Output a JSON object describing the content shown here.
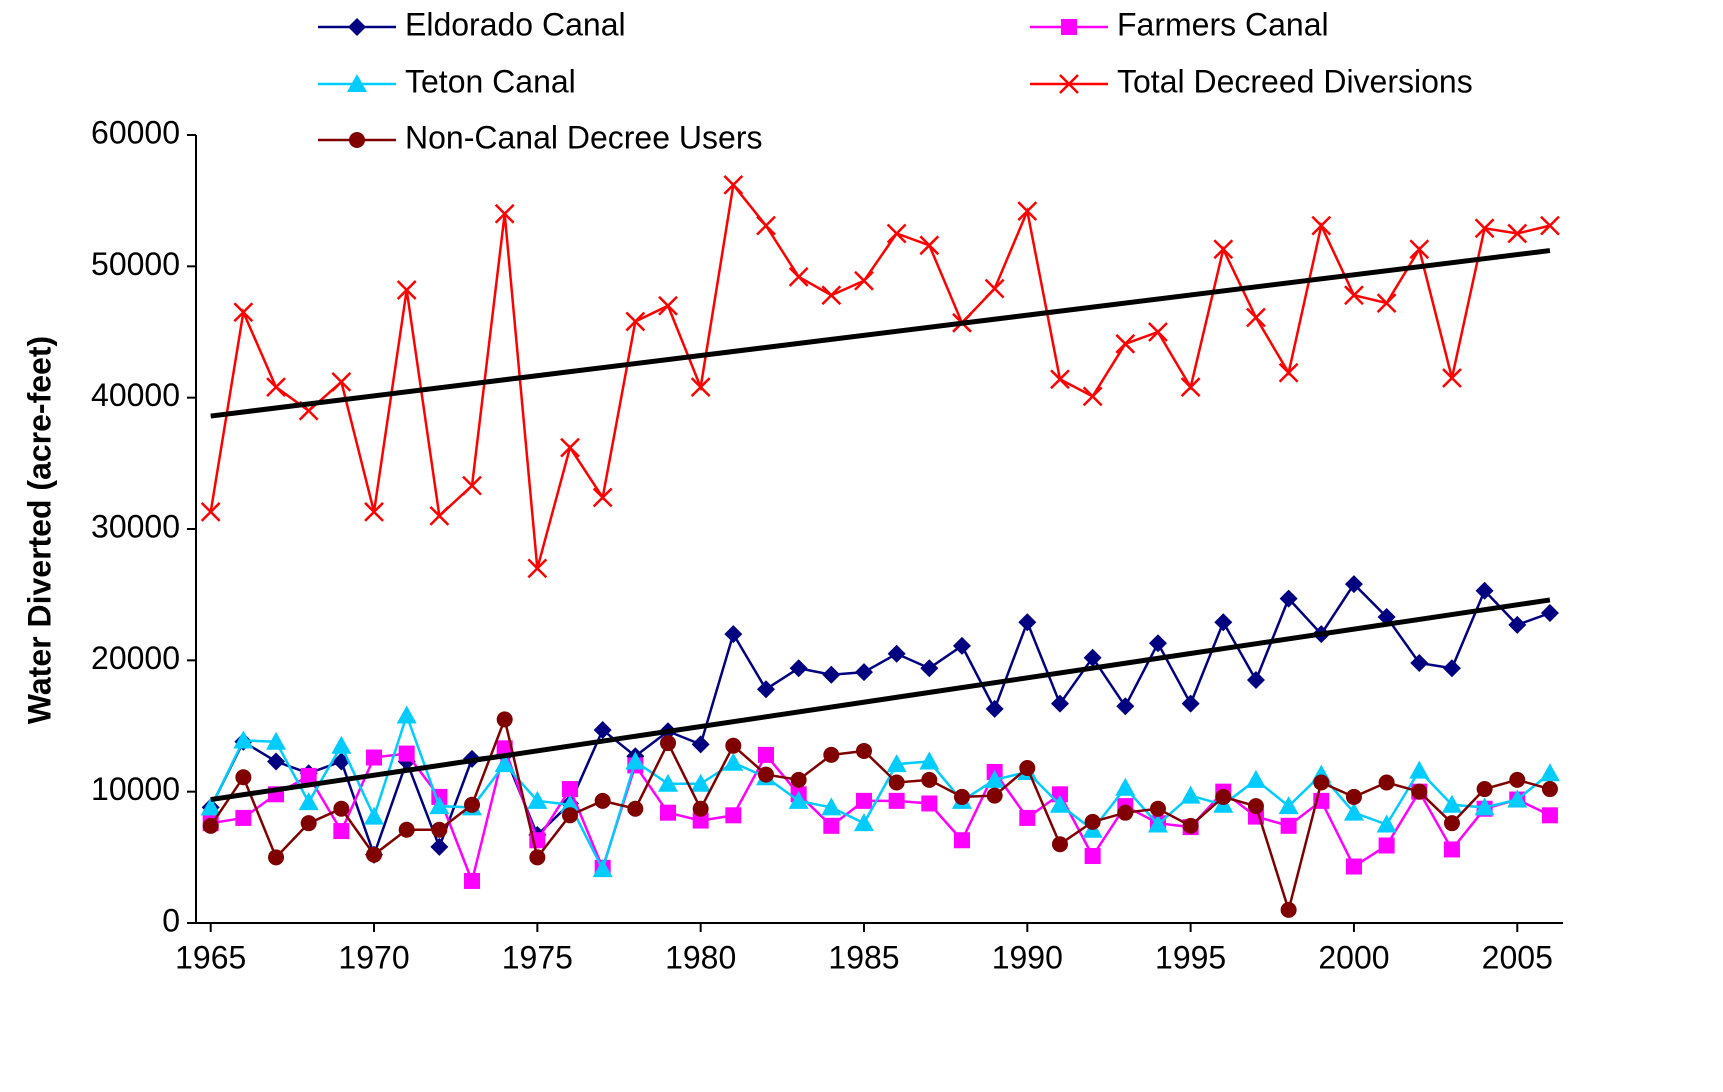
{
  "chart_data": {
    "type": "line",
    "y_label": "Water Diverted (acre-feet)",
    "x": [
      1965,
      1966,
      1967,
      1968,
      1969,
      1970,
      1971,
      1972,
      1973,
      1974,
      1975,
      1976,
      1977,
      1978,
      1979,
      1980,
      1981,
      1982,
      1983,
      1984,
      1985,
      1986,
      1987,
      1988,
      1989,
      1990,
      1991,
      1992,
      1993,
      1994,
      1995,
      1996,
      1997,
      1998,
      1999,
      2000,
      2001,
      2002,
      2003,
      2004,
      2005,
      2006
    ],
    "series": [
      {
        "name": "Eldorado Canal",
        "color": "#000080",
        "marker": "diamond",
        "values": [
          8800,
          13800,
          12300,
          11400,
          12300,
          5200,
          12300,
          5800,
          12500,
          12800,
          6700,
          9100,
          14700,
          12700,
          14600,
          13600,
          22000,
          17800,
          19400,
          18900,
          19100,
          20500,
          19400,
          21100,
          16300,
          22900,
          16700,
          20200,
          16500,
          21300,
          16700,
          22900,
          18500,
          24700,
          22000,
          25800,
          23300,
          19800,
          19400,
          25300,
          22700,
          23600
        ]
      },
      {
        "name": "Farmers Canal",
        "color": "#ff00ff",
        "marker": "square",
        "values": [
          7600,
          8000,
          9800,
          11200,
          7000,
          12600,
          12900,
          9600,
          3200,
          13300,
          6300,
          10200,
          4200,
          12000,
          8400,
          7800,
          8200,
          12800,
          9800,
          7400,
          9300,
          9300,
          9100,
          6300,
          11500,
          8000,
          9800,
          5100,
          8900,
          7600,
          7300,
          10000,
          8100,
          7400,
          9300,
          4300,
          5900,
          10000,
          5600,
          8700,
          9400,
          8200
        ]
      },
      {
        "name": "Teton Canal",
        "color": "#00ccff",
        "marker": "triangle",
        "values": [
          8800,
          13900,
          13800,
          9200,
          13500,
          8100,
          15800,
          8900,
          8800,
          12100,
          9300,
          9000,
          4100,
          12300,
          10600,
          10600,
          12200,
          11100,
          9300,
          8800,
          7600,
          12100,
          12300,
          9300,
          10900,
          11500,
          9000,
          7100,
          10300,
          7500,
          9700,
          9000,
          10900,
          8900,
          11300,
          8400,
          7500,
          11600,
          9000,
          8800,
          9400,
          11400
        ]
      },
      {
        "name": "Total Decreed Diversions",
        "color": "#ff0000",
        "marker": "x",
        "values": [
          31300,
          46500,
          40800,
          39000,
          41200,
          31300,
          48200,
          31000,
          33300,
          54000,
          27000,
          36200,
          32400,
          45800,
          47000,
          40800,
          56200,
          53100,
          49200,
          47800,
          48900,
          52500,
          51600,
          45700,
          48300,
          54200,
          41400,
          40100,
          44100,
          45000,
          40800,
          51300,
          46100,
          41900,
          53100,
          47800,
          47200,
          51300,
          41500,
          52900,
          52500,
          53100
        ]
      },
      {
        "name": "Non-Canal Decree Users",
        "color": "#800000",
        "marker": "circle",
        "values": [
          7400,
          11100,
          5000,
          7600,
          8700,
          5200,
          7100,
          7100,
          9000,
          15500,
          5000,
          8200,
          9300,
          8700,
          13700,
          8700,
          13500,
          11300,
          10900,
          12800,
          13100,
          10700,
          10900,
          9600,
          9700,
          11800,
          6000,
          7700,
          8400,
          8700,
          7400,
          9600,
          8900,
          1000,
          10700,
          9600,
          10700,
          10000,
          7600,
          10200,
          10900,
          10200
        ]
      }
    ],
    "trendlines": [
      {
        "color": "#000000",
        "x": [
          1965,
          2006
        ],
        "values": [
          38600,
          51200
        ]
      },
      {
        "color": "#000000",
        "x": [
          1965,
          2006
        ],
        "values": [
          9400,
          24600
        ]
      }
    ],
    "xlim": [
      1964.55,
      2006.4
    ],
    "xticks": [
      1965,
      1970,
      1975,
      1980,
      1985,
      1990,
      1995,
      2000,
      2005
    ],
    "ylim": [
      0,
      60000
    ],
    "yticks": [
      0,
      10000,
      20000,
      30000,
      40000,
      50000,
      60000
    ],
    "grid": false
  }
}
